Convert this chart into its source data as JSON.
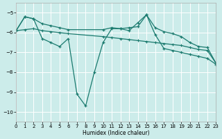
{
  "xlabel": "Humidex (Indice chaleur)",
  "bg_color": "#ccecea",
  "grid_color": "#b8ddd9",
  "line_color": "#1a7a6e",
  "xlim": [
    0,
    23
  ],
  "ylim": [
    -10.5,
    -4.5
  ],
  "yticks": [
    -10,
    -9,
    -8,
    -7,
    -6,
    -5
  ],
  "xticks": [
    0,
    1,
    2,
    3,
    4,
    5,
    6,
    7,
    8,
    9,
    10,
    11,
    12,
    13,
    14,
    15,
    16,
    17,
    18,
    19,
    20,
    21,
    22,
    23
  ],
  "series": [
    {
      "x": [
        0,
        1,
        2,
        3,
        4,
        5,
        6,
        7,
        8,
        9,
        10,
        11,
        12,
        13,
        14,
        15,
        16,
        17,
        18,
        19,
        20,
        21,
        22,
        23
      ],
      "y": [
        -5.9,
        -5.2,
        -5.3,
        -6.3,
        -6.5,
        -6.7,
        -6.3,
        -9.1,
        -9.7,
        -8.0,
        -6.5,
        -5.8,
        -5.8,
        -5.9,
        -5.5,
        -5.1,
        -6.1,
        -6.8,
        -6.9,
        -7.0,
        -7.1,
        -7.2,
        -7.3,
        -7.6
      ]
    },
    {
      "x": [
        0,
        1,
        2,
        3,
        4,
        5,
        6,
        10,
        11,
        12,
        13,
        14,
        15,
        16,
        17,
        18,
        19,
        20,
        21,
        22,
        23
      ],
      "y": [
        -5.9,
        -5.2,
        -5.3,
        -5.55,
        -5.65,
        -5.75,
        -5.85,
        -5.85,
        -5.75,
        -5.8,
        -5.75,
        -5.7,
        -5.1,
        -5.75,
        -5.95,
        -6.05,
        -6.2,
        -6.5,
        -6.7,
        -6.75,
        -7.55
      ]
    },
    {
      "x": [
        0,
        1,
        2,
        3,
        4,
        5,
        6,
        10,
        11,
        12,
        13,
        14,
        15,
        16,
        17,
        18,
        19,
        20,
        21,
        22,
        23
      ],
      "y": [
        -5.9,
        -5.85,
        -5.8,
        -5.9,
        -5.95,
        -6.0,
        -6.05,
        -6.2,
        -6.25,
        -6.3,
        -6.35,
        -6.4,
        -6.45,
        -6.5,
        -6.55,
        -6.6,
        -6.65,
        -6.75,
        -6.85,
        -6.9,
        -7.55
      ]
    }
  ]
}
